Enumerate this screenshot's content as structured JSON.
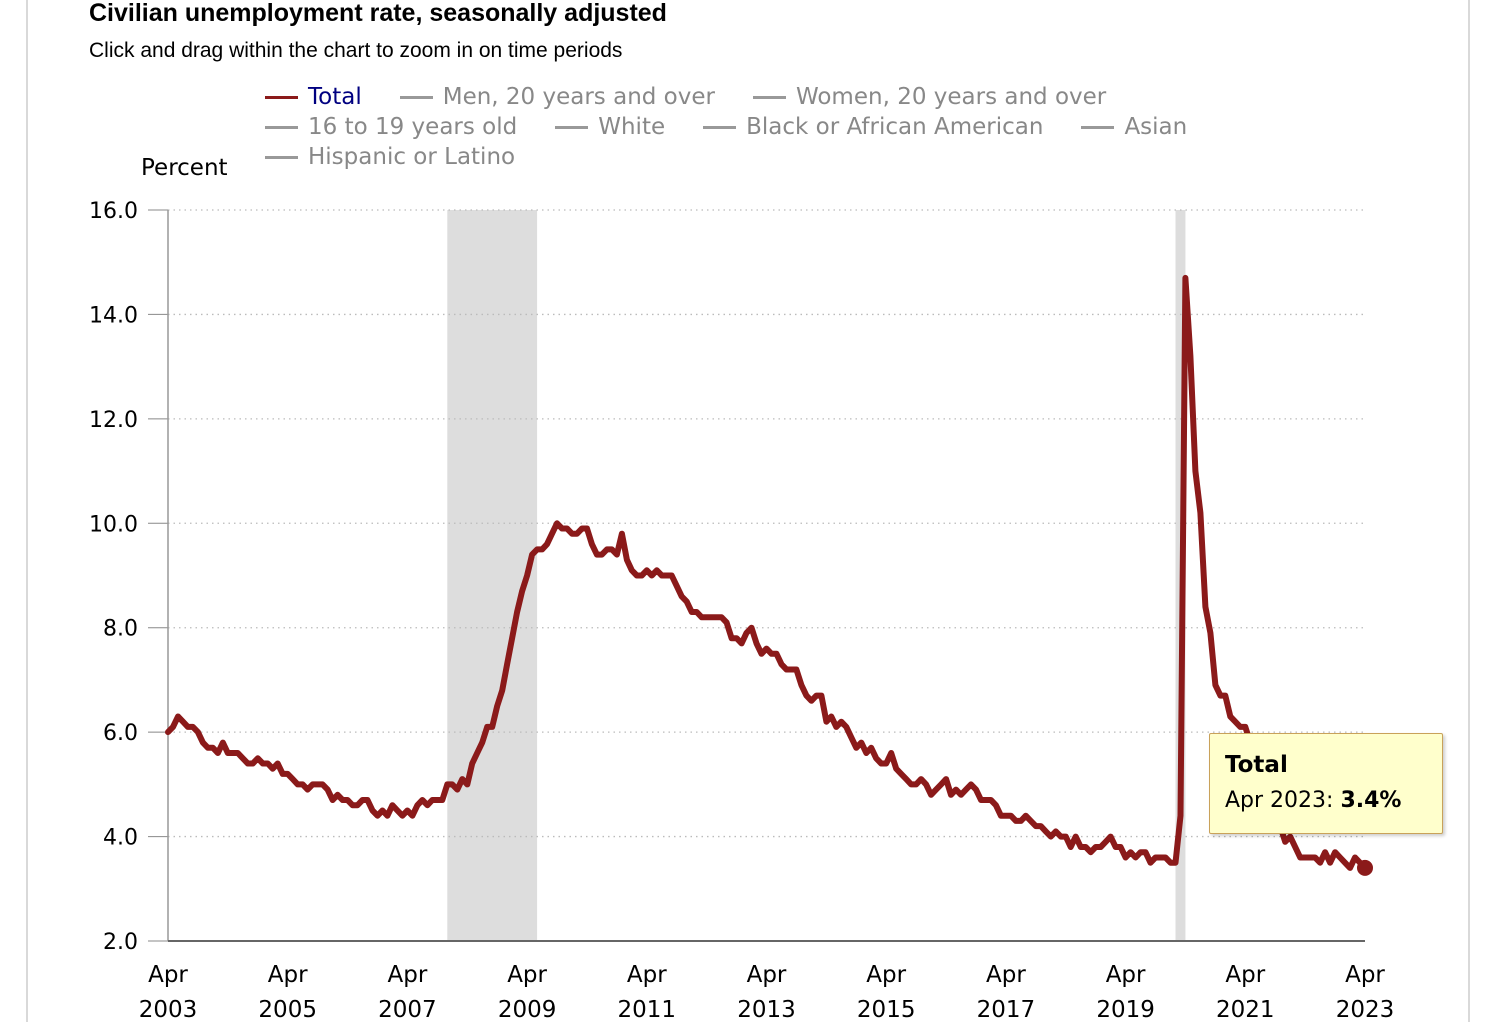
{
  "header": {
    "title": "Civilian unemployment rate, seasonally adjusted",
    "subtitle": "Click and drag within the chart to zoom in on time periods"
  },
  "legend": {
    "items": [
      {
        "label": "Total",
        "active": true
      },
      {
        "label": "Men, 20 years and over",
        "active": false
      },
      {
        "label": "Women, 20 years and over",
        "active": false
      },
      {
        "label": "16 to 19 years old",
        "active": false
      },
      {
        "label": "White",
        "active": false
      },
      {
        "label": "Black or African American",
        "active": false
      },
      {
        "label": "Asian",
        "active": false
      },
      {
        "label": "Hispanic or Latino",
        "active": false
      }
    ]
  },
  "tooltip": {
    "series": "Total",
    "date": "Apr 2023",
    "sep": ": ",
    "value": "3.4%"
  },
  "colors": {
    "series": "#8B1A1A",
    "recession": "#dddddd",
    "grid": "#bbbbbb",
    "tooltip_bg": "#ffffcc",
    "legend_active_text": "#000080",
    "legend_inactive": "#888888"
  },
  "chart_data": {
    "type": "line",
    "title": "Civilian unemployment rate, seasonally adjusted",
    "ylabel": "Percent",
    "xlabel": "",
    "ylim": [
      2.0,
      16.0
    ],
    "yticks": [
      "2.0",
      "4.0",
      "6.0",
      "8.0",
      "10.0",
      "12.0",
      "14.0",
      "16.0"
    ],
    "xlim": [
      "2003-04",
      "2023-04"
    ],
    "xticks": [
      {
        "month": "Apr",
        "year": "2003"
      },
      {
        "month": "Apr",
        "year": "2005"
      },
      {
        "month": "Apr",
        "year": "2007"
      },
      {
        "month": "Apr",
        "year": "2009"
      },
      {
        "month": "Apr",
        "year": "2011"
      },
      {
        "month": "Apr",
        "year": "2013"
      },
      {
        "month": "Apr",
        "year": "2015"
      },
      {
        "month": "Apr",
        "year": "2017"
      },
      {
        "month": "Apr",
        "year": "2019"
      },
      {
        "month": "Apr",
        "year": "2021"
      },
      {
        "month": "Apr",
        "year": "2023"
      }
    ],
    "grid": true,
    "legend_position": "top",
    "recessions": [
      {
        "start": "2007-12",
        "end": "2009-06"
      },
      {
        "start": "2020-02",
        "end": "2020-04"
      }
    ],
    "series": [
      {
        "name": "Total",
        "highlight": {
          "date": "2023-04",
          "value": 3.4
        },
        "points": [
          [
            "2003-04",
            6.0
          ],
          [
            "2003-05",
            6.1
          ],
          [
            "2003-06",
            6.3
          ],
          [
            "2003-07",
            6.2
          ],
          [
            "2003-08",
            6.1
          ],
          [
            "2003-09",
            6.1
          ],
          [
            "2003-10",
            6.0
          ],
          [
            "2003-11",
            5.8
          ],
          [
            "2003-12",
            5.7
          ],
          [
            "2004-01",
            5.7
          ],
          [
            "2004-02",
            5.6
          ],
          [
            "2004-03",
            5.8
          ],
          [
            "2004-04",
            5.6
          ],
          [
            "2004-05",
            5.6
          ],
          [
            "2004-06",
            5.6
          ],
          [
            "2004-07",
            5.5
          ],
          [
            "2004-08",
            5.4
          ],
          [
            "2004-09",
            5.4
          ],
          [
            "2004-10",
            5.5
          ],
          [
            "2004-11",
            5.4
          ],
          [
            "2004-12",
            5.4
          ],
          [
            "2005-01",
            5.3
          ],
          [
            "2005-02",
            5.4
          ],
          [
            "2005-03",
            5.2
          ],
          [
            "2005-04",
            5.2
          ],
          [
            "2005-05",
            5.1
          ],
          [
            "2005-06",
            5.0
          ],
          [
            "2005-07",
            5.0
          ],
          [
            "2005-08",
            4.9
          ],
          [
            "2005-09",
            5.0
          ],
          [
            "2005-10",
            5.0
          ],
          [
            "2005-11",
            5.0
          ],
          [
            "2005-12",
            4.9
          ],
          [
            "2006-01",
            4.7
          ],
          [
            "2006-02",
            4.8
          ],
          [
            "2006-03",
            4.7
          ],
          [
            "2006-04",
            4.7
          ],
          [
            "2006-05",
            4.6
          ],
          [
            "2006-06",
            4.6
          ],
          [
            "2006-07",
            4.7
          ],
          [
            "2006-08",
            4.7
          ],
          [
            "2006-09",
            4.5
          ],
          [
            "2006-10",
            4.4
          ],
          [
            "2006-11",
            4.5
          ],
          [
            "2006-12",
            4.4
          ],
          [
            "2007-01",
            4.6
          ],
          [
            "2007-02",
            4.5
          ],
          [
            "2007-03",
            4.4
          ],
          [
            "2007-04",
            4.5
          ],
          [
            "2007-05",
            4.4
          ],
          [
            "2007-06",
            4.6
          ],
          [
            "2007-07",
            4.7
          ],
          [
            "2007-08",
            4.6
          ],
          [
            "2007-09",
            4.7
          ],
          [
            "2007-10",
            4.7
          ],
          [
            "2007-11",
            4.7
          ],
          [
            "2007-12",
            5.0
          ],
          [
            "2008-01",
            5.0
          ],
          [
            "2008-02",
            4.9
          ],
          [
            "2008-03",
            5.1
          ],
          [
            "2008-04",
            5.0
          ],
          [
            "2008-05",
            5.4
          ],
          [
            "2008-06",
            5.6
          ],
          [
            "2008-07",
            5.8
          ],
          [
            "2008-08",
            6.1
          ],
          [
            "2008-09",
            6.1
          ],
          [
            "2008-10",
            6.5
          ],
          [
            "2008-11",
            6.8
          ],
          [
            "2008-12",
            7.3
          ],
          [
            "2009-01",
            7.8
          ],
          [
            "2009-02",
            8.3
          ],
          [
            "2009-03",
            8.7
          ],
          [
            "2009-04",
            9.0
          ],
          [
            "2009-05",
            9.4
          ],
          [
            "2009-06",
            9.5
          ],
          [
            "2009-07",
            9.5
          ],
          [
            "2009-08",
            9.6
          ],
          [
            "2009-09",
            9.8
          ],
          [
            "2009-10",
            10.0
          ],
          [
            "2009-11",
            9.9
          ],
          [
            "2009-12",
            9.9
          ],
          [
            "2010-01",
            9.8
          ],
          [
            "2010-02",
            9.8
          ],
          [
            "2010-03",
            9.9
          ],
          [
            "2010-04",
            9.9
          ],
          [
            "2010-05",
            9.6
          ],
          [
            "2010-06",
            9.4
          ],
          [
            "2010-07",
            9.4
          ],
          [
            "2010-08",
            9.5
          ],
          [
            "2010-09",
            9.5
          ],
          [
            "2010-10",
            9.4
          ],
          [
            "2010-11",
            9.8
          ],
          [
            "2010-12",
            9.3
          ],
          [
            "2011-01",
            9.1
          ],
          [
            "2011-02",
            9.0
          ],
          [
            "2011-03",
            9.0
          ],
          [
            "2011-04",
            9.1
          ],
          [
            "2011-05",
            9.0
          ],
          [
            "2011-06",
            9.1
          ],
          [
            "2011-07",
            9.0
          ],
          [
            "2011-08",
            9.0
          ],
          [
            "2011-09",
            9.0
          ],
          [
            "2011-10",
            8.8
          ],
          [
            "2011-11",
            8.6
          ],
          [
            "2011-12",
            8.5
          ],
          [
            "2012-01",
            8.3
          ],
          [
            "2012-02",
            8.3
          ],
          [
            "2012-03",
            8.2
          ],
          [
            "2012-04",
            8.2
          ],
          [
            "2012-05",
            8.2
          ],
          [
            "2012-06",
            8.2
          ],
          [
            "2012-07",
            8.2
          ],
          [
            "2012-08",
            8.1
          ],
          [
            "2012-09",
            7.8
          ],
          [
            "2012-10",
            7.8
          ],
          [
            "2012-11",
            7.7
          ],
          [
            "2012-12",
            7.9
          ],
          [
            "2013-01",
            8.0
          ],
          [
            "2013-02",
            7.7
          ],
          [
            "2013-03",
            7.5
          ],
          [
            "2013-04",
            7.6
          ],
          [
            "2013-05",
            7.5
          ],
          [
            "2013-06",
            7.5
          ],
          [
            "2013-07",
            7.3
          ],
          [
            "2013-08",
            7.2
          ],
          [
            "2013-09",
            7.2
          ],
          [
            "2013-10",
            7.2
          ],
          [
            "2013-11",
            6.9
          ],
          [
            "2013-12",
            6.7
          ],
          [
            "2014-01",
            6.6
          ],
          [
            "2014-02",
            6.7
          ],
          [
            "2014-03",
            6.7
          ],
          [
            "2014-04",
            6.2
          ],
          [
            "2014-05",
            6.3
          ],
          [
            "2014-06",
            6.1
          ],
          [
            "2014-07",
            6.2
          ],
          [
            "2014-08",
            6.1
          ],
          [
            "2014-09",
            5.9
          ],
          [
            "2014-10",
            5.7
          ],
          [
            "2014-11",
            5.8
          ],
          [
            "2014-12",
            5.6
          ],
          [
            "2015-01",
            5.7
          ],
          [
            "2015-02",
            5.5
          ],
          [
            "2015-03",
            5.4
          ],
          [
            "2015-04",
            5.4
          ],
          [
            "2015-05",
            5.6
          ],
          [
            "2015-06",
            5.3
          ],
          [
            "2015-07",
            5.2
          ],
          [
            "2015-08",
            5.1
          ],
          [
            "2015-09",
            5.0
          ],
          [
            "2015-10",
            5.0
          ],
          [
            "2015-11",
            5.1
          ],
          [
            "2015-12",
            5.0
          ],
          [
            "2016-01",
            4.8
          ],
          [
            "2016-02",
            4.9
          ],
          [
            "2016-03",
            5.0
          ],
          [
            "2016-04",
            5.1
          ],
          [
            "2016-05",
            4.8
          ],
          [
            "2016-06",
            4.9
          ],
          [
            "2016-07",
            4.8
          ],
          [
            "2016-08",
            4.9
          ],
          [
            "2016-09",
            5.0
          ],
          [
            "2016-10",
            4.9
          ],
          [
            "2016-11",
            4.7
          ],
          [
            "2016-12",
            4.7
          ],
          [
            "2017-01",
            4.7
          ],
          [
            "2017-02",
            4.6
          ],
          [
            "2017-03",
            4.4
          ],
          [
            "2017-04",
            4.4
          ],
          [
            "2017-05",
            4.4
          ],
          [
            "2017-06",
            4.3
          ],
          [
            "2017-07",
            4.3
          ],
          [
            "2017-08",
            4.4
          ],
          [
            "2017-09",
            4.3
          ],
          [
            "2017-10",
            4.2
          ],
          [
            "2017-11",
            4.2
          ],
          [
            "2017-12",
            4.1
          ],
          [
            "2018-01",
            4.0
          ],
          [
            "2018-02",
            4.1
          ],
          [
            "2018-03",
            4.0
          ],
          [
            "2018-04",
            4.0
          ],
          [
            "2018-05",
            3.8
          ],
          [
            "2018-06",
            4.0
          ],
          [
            "2018-07",
            3.8
          ],
          [
            "2018-08",
            3.8
          ],
          [
            "2018-09",
            3.7
          ],
          [
            "2018-10",
            3.8
          ],
          [
            "2018-11",
            3.8
          ],
          [
            "2018-12",
            3.9
          ],
          [
            "2019-01",
            4.0
          ],
          [
            "2019-02",
            3.8
          ],
          [
            "2019-03",
            3.8
          ],
          [
            "2019-04",
            3.6
          ],
          [
            "2019-05",
            3.7
          ],
          [
            "2019-06",
            3.6
          ],
          [
            "2019-07",
            3.7
          ],
          [
            "2019-08",
            3.7
          ],
          [
            "2019-09",
            3.5
          ],
          [
            "2019-10",
            3.6
          ],
          [
            "2019-11",
            3.6
          ],
          [
            "2019-12",
            3.6
          ],
          [
            "2020-01",
            3.5
          ],
          [
            "2020-02",
            3.5
          ],
          [
            "2020-03",
            4.4
          ],
          [
            "2020-04",
            14.7
          ],
          [
            "2020-05",
            13.2
          ],
          [
            "2020-06",
            11.0
          ],
          [
            "2020-07",
            10.2
          ],
          [
            "2020-08",
            8.4
          ],
          [
            "2020-09",
            7.9
          ],
          [
            "2020-10",
            6.9
          ],
          [
            "2020-11",
            6.7
          ],
          [
            "2020-12",
            6.7
          ],
          [
            "2021-01",
            6.3
          ],
          [
            "2021-02",
            6.2
          ],
          [
            "2021-03",
            6.1
          ],
          [
            "2021-04",
            6.1
          ],
          [
            "2021-05",
            5.8
          ],
          [
            "2021-06",
            5.9
          ],
          [
            "2021-07",
            5.4
          ],
          [
            "2021-08",
            5.2
          ],
          [
            "2021-09",
            4.7
          ],
          [
            "2021-10",
            4.5
          ],
          [
            "2021-11",
            4.2
          ],
          [
            "2021-12",
            3.9
          ],
          [
            "2022-01",
            4.0
          ],
          [
            "2022-02",
            3.8
          ],
          [
            "2022-03",
            3.6
          ],
          [
            "2022-04",
            3.6
          ],
          [
            "2022-05",
            3.6
          ],
          [
            "2022-06",
            3.6
          ],
          [
            "2022-07",
            3.5
          ],
          [
            "2022-08",
            3.7
          ],
          [
            "2022-09",
            3.5
          ],
          [
            "2022-10",
            3.7
          ],
          [
            "2022-11",
            3.6
          ],
          [
            "2022-12",
            3.5
          ],
          [
            "2023-01",
            3.4
          ],
          [
            "2023-02",
            3.6
          ],
          [
            "2023-03",
            3.5
          ],
          [
            "2023-04",
            3.4
          ]
        ]
      }
    ]
  }
}
